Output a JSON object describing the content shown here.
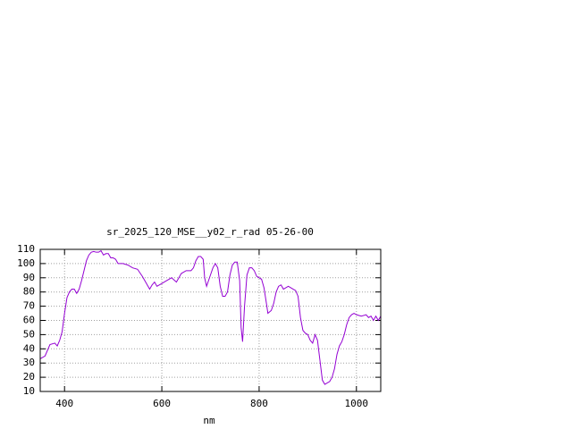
{
  "chart_data": {
    "type": "line",
    "title": "sr_2025_120_MSE__y02_r_rad 05-26-00",
    "x_label": "nm",
    "x": [
      350,
      360,
      370,
      380,
      385,
      390,
      395,
      400,
      405,
      410,
      415,
      420,
      425,
      430,
      435,
      440,
      445,
      450,
      455,
      460,
      465,
      470,
      475,
      480,
      485,
      490,
      495,
      500,
      505,
      510,
      520,
      530,
      540,
      550,
      560,
      570,
      575,
      580,
      585,
      590,
      600,
      610,
      620,
      630,
      640,
      650,
      660,
      665,
      670,
      675,
      680,
      685,
      688,
      692,
      700,
      705,
      710,
      715,
      720,
      725,
      730,
      735,
      740,
      745,
      750,
      755,
      760,
      763,
      766,
      770,
      775,
      780,
      785,
      790,
      795,
      800,
      805,
      810,
      815,
      818,
      825,
      830,
      835,
      840,
      845,
      850,
      855,
      860,
      865,
      870,
      875,
      880,
      885,
      890,
      895,
      900,
      905,
      910,
      915,
      920,
      925,
      930,
      935,
      940,
      945,
      950,
      955,
      960,
      965,
      970,
      975,
      980,
      985,
      990,
      995,
      1000,
      1010,
      1020,
      1025,
      1030,
      1035,
      1040,
      1045,
      1050
    ],
    "series": [
      {
        "color": "#9400d3",
        "values": [
          33,
          35,
          43,
          44,
          42,
          46,
          52,
          65,
          76,
          80,
          82,
          82,
          79,
          82,
          88,
          95,
          102,
          106,
          108,
          108.5,
          108,
          108,
          109,
          106,
          107,
          107,
          104,
          104,
          103,
          100,
          100,
          99,
          97,
          96,
          91,
          85,
          82,
          85,
          87,
          84,
          86,
          88,
          90,
          87,
          93,
          95,
          95,
          97,
          102,
          105,
          105,
          103,
          90,
          84,
          92,
          97,
          100,
          97,
          84,
          77,
          77,
          80,
          92,
          99,
          101,
          101,
          88,
          55,
          45,
          70,
          92,
          97,
          97,
          95,
          91,
          90,
          89,
          83,
          72,
          65,
          67,
          72,
          80,
          84,
          85,
          82,
          83,
          84,
          83,
          82,
          81,
          77,
          62,
          53,
          51,
          50,
          46,
          44,
          50,
          46,
          32,
          18,
          15,
          16,
          17,
          20,
          26,
          36,
          42,
          45,
          50,
          57,
          62,
          64,
          65,
          64,
          63,
          64,
          62,
          63,
          60,
          63,
          60,
          63
        ]
      }
    ],
    "xlim": [
      350,
      1050
    ],
    "xticks": [
      400,
      600,
      800,
      1000
    ],
    "ylim": [
      10,
      110
    ],
    "yticks": [
      10,
      20,
      30,
      40,
      50,
      60,
      70,
      80,
      90,
      100,
      110
    ],
    "grid": true
  }
}
